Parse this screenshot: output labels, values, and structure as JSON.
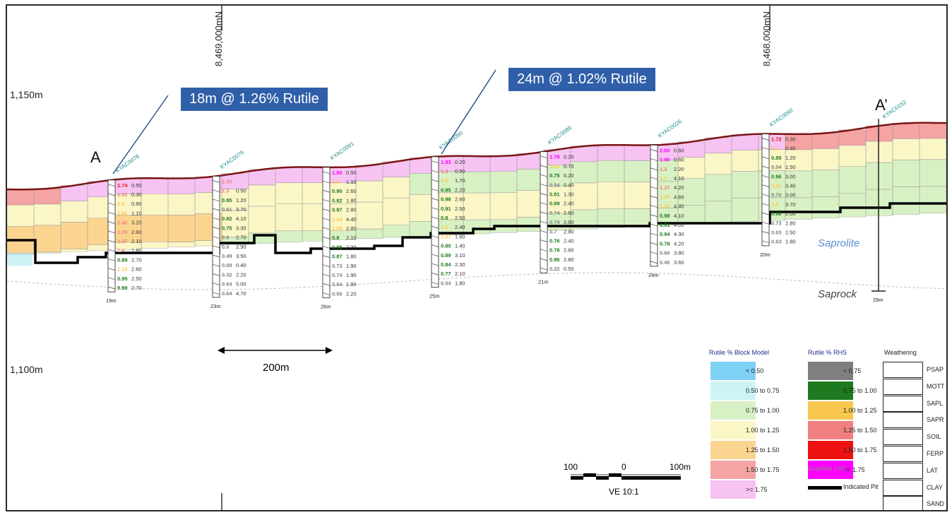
{
  "elevation_labels": {
    "upper": "1,150m",
    "lower": "1,100m"
  },
  "northings": {
    "left": "8,469,000mN",
    "right": "8,468,000mN"
  },
  "section_ends": {
    "start": "A",
    "end": "A’"
  },
  "callouts": {
    "left": "18m @ 1.26% Rutile",
    "right": "24m @ 1.02% Rutile"
  },
  "zones": {
    "saprolite": "Saprolite",
    "saprock": "Saprock"
  },
  "distance_bar": {
    "label": "200m"
  },
  "scale": {
    "left": "100",
    "mid": "0",
    "right": "100m",
    "ve": "VE 10:1"
  },
  "colors": {
    "topo": "#7a1515",
    "pit": "#000000",
    "lt050": "#7fd0f5",
    "r050_075": "#cdf3f7",
    "r075_100": "#d8f1c4",
    "r100_125": "#fbf6c6",
    "r125_150": "#fbd590",
    "r150_175": "#f5a3a3",
    "ge175": "#f6c3f2",
    "rhs_lt075": "#7f7f7f",
    "rhs_075_100": "#1e7a1e",
    "rhs_100_125": "#f9c74f",
    "rhs_125_150": "#f08080",
    "rhs_150_175": "#ee1111",
    "rhs_ge175": "#ff00ff",
    "teal": "#1f8a8a"
  },
  "drillholes": [
    {
      "id": "KYAC0078",
      "depth": "19m",
      "samples": [
        {
          "g": "1.74",
          "d": "0.50"
        },
        {
          "g": "1.31",
          "d": "0.30"
        },
        {
          "g": "1.2",
          "d": "0.90"
        },
        {
          "g": "1.01",
          "d": "1.10"
        },
        {
          "g": "1.42",
          "d": "3.20"
        },
        {
          "g": "1.29",
          "d": "2.60"
        },
        {
          "g": "1.37",
          "d": "2.10"
        },
        {
          "g": "1.4",
          "d": "1.80"
        },
        {
          "g": "0.89",
          "d": "2.70"
        },
        {
          "g": "1.13",
          "d": "2.60"
        },
        {
          "g": "0.95",
          "d": "2.50"
        },
        {
          "g": "0.90",
          "d": "2.70"
        }
      ]
    },
    {
      "id": "KYAC0079",
      "depth": "23m",
      "samples": [
        {
          "g": "1.33",
          "d": ""
        },
        {
          "g": "1.3",
          "d": "0.50"
        },
        {
          "g": "0.85",
          "d": "1.20"
        },
        {
          "g": "0.61",
          "d": "3.70"
        },
        {
          "g": "0.82",
          "d": "4.10"
        },
        {
          "g": "0.75",
          "d": "3.30"
        },
        {
          "g": "0.6",
          "d": "2.70"
        },
        {
          "g": "0.6",
          "d": "2.90"
        },
        {
          "g": "0.49",
          "d": "3.50"
        },
        {
          "g": "0.08",
          "d": "0.40"
        },
        {
          "g": "0.32",
          "d": "2.20"
        },
        {
          "g": "0.64",
          "d": "5.00"
        },
        {
          "g": "0.64",
          "d": "4.70"
        }
      ]
    },
    {
      "id": "KYAC0091",
      "depth": "26m",
      "samples": [
        {
          "g": "1.80",
          "d": "0.50"
        },
        {
          "g": "1.2",
          "d": "1.10"
        },
        {
          "g": "0.90",
          "d": "2.60"
        },
        {
          "g": "0.82",
          "d": "1.80"
        },
        {
          "g": "0.97",
          "d": "2.80"
        },
        {
          "g": "1.04",
          "d": "4.40"
        },
        {
          "g": "1.03",
          "d": "2.80"
        },
        {
          "g": "0.8",
          "d": "2.10"
        },
        {
          "g": "0.98",
          "d": "2.30"
        },
        {
          "g": "0.87",
          "d": "1.80"
        },
        {
          "g": "0.73",
          "d": "1.90"
        },
        {
          "g": "0.74",
          "d": "1.90"
        },
        {
          "g": "0.64",
          "d": "1.90"
        },
        {
          "g": "0.59",
          "d": "2.20"
        }
      ]
    },
    {
      "id": "KYAC0090",
      "depth": "25m",
      "samples": [
        {
          "g": "1.93",
          "d": "0.20"
        },
        {
          "g": "1.3",
          "d": "0.50"
        },
        {
          "g": "1.2",
          "d": "1.70"
        },
        {
          "g": "0.95",
          "d": "2.20"
        },
        {
          "g": "0.98",
          "d": "2.60"
        },
        {
          "g": "0.91",
          "d": "2.50"
        },
        {
          "g": "0.8",
          "d": "2.50"
        },
        {
          "g": "1.0",
          "d": "2.40"
        },
        {
          "g": "1.07",
          "d": "1.60"
        },
        {
          "g": "0.80",
          "d": "1.40"
        },
        {
          "g": "0.89",
          "d": "3.10"
        },
        {
          "g": "0.84",
          "d": "2.30"
        },
        {
          "g": "0.77",
          "d": "2.10"
        },
        {
          "g": "0.54",
          "d": "1.80"
        }
      ]
    },
    {
      "id": "KYAC0089",
      "depth": "21m",
      "samples": [
        {
          "g": "1.78",
          "d": "0.20"
        },
        {
          "g": "1.03",
          "d": "0.70"
        },
        {
          "g": "0.75",
          "d": "0.20"
        },
        {
          "g": "0.54",
          "d": "0.40"
        },
        {
          "g": "0.81",
          "d": "1.30"
        },
        {
          "g": "0.89",
          "d": "2.40"
        },
        {
          "g": "0.74",
          "d": "2.60"
        },
        {
          "g": "0.74",
          "d": "2.60"
        },
        {
          "g": "0.7",
          "d": "2.80"
        },
        {
          "g": "0.76",
          "d": "2.40"
        },
        {
          "g": "0.78",
          "d": "2.60"
        },
        {
          "g": "0.86",
          "d": "2.80"
        },
        {
          "g": "0.22",
          "d": "0.50"
        }
      ]
    },
    {
      "id": "KYAC0026",
      "depth": "24m",
      "samples": [
        {
          "g": "2.60",
          "d": "0.60"
        },
        {
          "g": "1.90",
          "d": "0.60"
        },
        {
          "g": "1.3",
          "d": "2.20"
        },
        {
          "g": "1.1",
          "d": "4.10"
        },
        {
          "g": "1.27",
          "d": "4.20"
        },
        {
          "g": "1.09",
          "d": "4.60"
        },
        {
          "g": "1.10",
          "d": "4.40"
        },
        {
          "g": "0.98",
          "d": "4.10"
        },
        {
          "g": "0.91",
          "d": "4.00"
        },
        {
          "g": "0.94",
          "d": "4.30"
        },
        {
          "g": "0.78",
          "d": "4.20"
        },
        {
          "g": "0.66",
          "d": "3.80"
        },
        {
          "g": "0.46",
          "d": "3.60"
        }
      ]
    },
    {
      "id": "KYAC0092",
      "depth": "20m",
      "samples": [
        {
          "g": "1.72",
          "d": "0.30"
        },
        {
          "g": "1.1",
          "d": "0.40"
        },
        {
          "g": "0.85",
          "d": "1.20"
        },
        {
          "g": "0.54",
          "d": "1.50"
        },
        {
          "g": "0.96",
          "d": "3.00"
        },
        {
          "g": "1.01",
          "d": "3.40"
        },
        {
          "g": "0.70",
          "d": "3.00"
        },
        {
          "g": "1.0",
          "d": "3.70"
        },
        {
          "g": "0.98",
          "d": "2.00"
        },
        {
          "g": "0.73",
          "d": "2.80"
        },
        {
          "g": "0.63",
          "d": "2.50"
        },
        {
          "g": "0.63",
          "d": "2.80"
        }
      ]
    },
    {
      "id": "KYAC0152",
      "depth": "29m",
      "samples": []
    }
  ],
  "legend": {
    "block_model_title": "Rutile % Block Model",
    "block_model": [
      {
        "label": "< 0.50",
        "color": "#7fd0f5"
      },
      {
        "label": "0.50 to 0.75",
        "color": "#cdf3f7"
      },
      {
        "label": "0.75 to 1.00",
        "color": "#d8f1c4"
      },
      {
        "label": "1.00 to 1.25",
        "color": "#fbf6c6"
      },
      {
        "label": "1.25 to 1.50",
        "color": "#fbd590"
      },
      {
        "label": "1.50 to 1.75",
        "color": "#f5a3a3"
      },
      {
        "label": ">= 1.75",
        "color": "#f6c3f2"
      }
    ],
    "rhs_title": "Rutile % RHS",
    "rhs": [
      {
        "label": "< 0.75",
        "color": "#7f7f7f"
      },
      {
        "label": "0.75 to 1.00",
        "color": "#1e7a1e"
      },
      {
        "label": "1.00 to 1.25",
        "color": "#f9c74f"
      },
      {
        "label": "1.25 to 1.50",
        "color": "#f08080"
      },
      {
        "label": "1.50 to 1.75",
        "color": "#ee1111"
      },
      {
        "label": ">= 1.75",
        "color": "#ff00ff"
      }
    ],
    "graphite": "Graphite LHS",
    "indicated_pit": "Indicated Pit",
    "weathering_title": "Weathering",
    "weathering": [
      "PSAP",
      "MOTT",
      "SAPL",
      "SAPR",
      "SOIL",
      "FERP",
      "LAT",
      "CLAY",
      "SAND"
    ]
  }
}
